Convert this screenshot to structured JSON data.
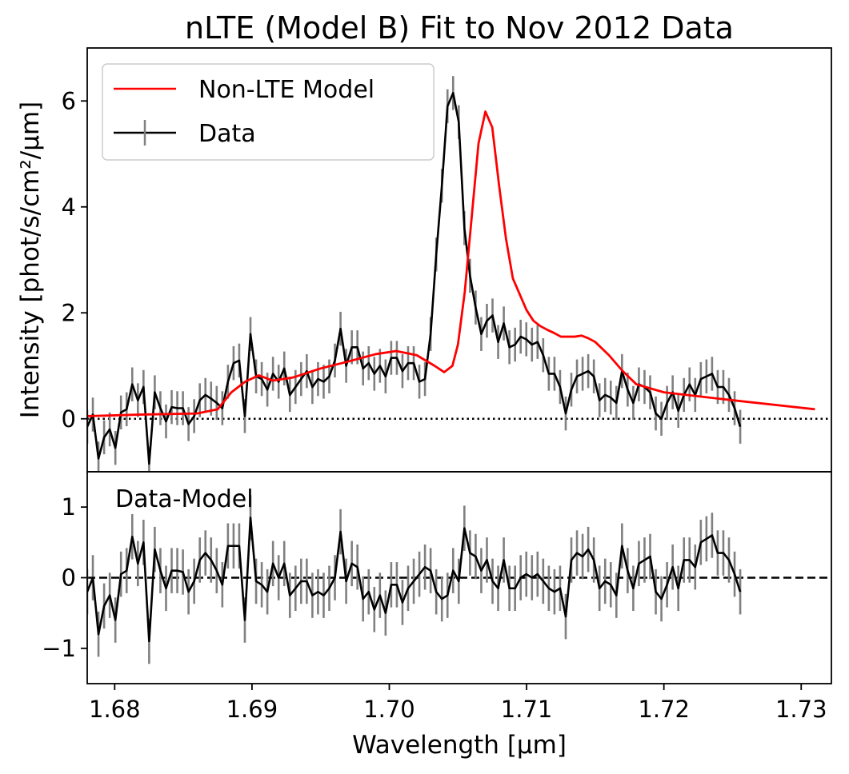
{
  "chart_data": [
    {
      "type": "line",
      "panel": "top",
      "title": "nLTE (Model B) Fit to Nov 2012 Data",
      "ylabel": "Intensity [phot/s/cm²/μm]",
      "xlim": [
        1.678,
        1.7322
      ],
      "ylim": [
        -1.0,
        7.0
      ],
      "yticks": [
        0,
        2,
        4,
        6
      ],
      "ytick_labels": [
        "0",
        "2",
        "4",
        "6"
      ],
      "reference_line": {
        "y": 0,
        "style": "dotted"
      },
      "legend": {
        "placement": "top-left",
        "entries": [
          "Non-LTE Model",
          "Data"
        ]
      },
      "colors": {
        "model": "#ff0000",
        "data": "#000000",
        "errorbar": "#808080"
      },
      "series": [
        {
          "name": "Data",
          "x_start": 1.678,
          "x_step": 0.00041,
          "errorbar": 0.32,
          "values": [
            -0.15,
            0.08,
            -0.75,
            -0.35,
            -0.2,
            -0.55,
            0.12,
            0.18,
            0.65,
            0.35,
            0.6,
            -0.85,
            0.5,
            0.2,
            -0.05,
            0.22,
            0.2,
            0.2,
            -0.1,
            0.05,
            0.35,
            0.45,
            0.38,
            0.3,
            0.2,
            0.7,
            1.05,
            1.1,
            0.05,
            1.6,
            0.8,
            0.75,
            0.55,
            0.85,
            0.7,
            0.95,
            0.45,
            0.6,
            0.75,
            0.9,
            0.6,
            0.75,
            0.7,
            0.8,
            1.1,
            1.7,
            1.0,
            1.35,
            1.35,
            0.95,
            1.05,
            0.85,
            1.0,
            0.8,
            1.15,
            1.15,
            0.9,
            1.05,
            1.05,
            0.7,
            0.75,
            1.6,
            3.1,
            4.4,
            5.9,
            6.15,
            5.6,
            3.6,
            2.7,
            2.1,
            1.6,
            1.85,
            1.95,
            1.45,
            1.8,
            1.35,
            1.4,
            1.55,
            1.5,
            1.4,
            1.45,
            1.2,
            0.85,
            0.85,
            0.6,
            0.1,
            0.55,
            0.8,
            0.85,
            0.9,
            0.8,
            0.35,
            0.45,
            0.4,
            0.3,
            0.9,
            0.55,
            0.3,
            0.65,
            0.6,
            0.5,
            0.1,
            0.0,
            0.3,
            0.5,
            0.15,
            0.45,
            0.65,
            0.45,
            0.75,
            0.8,
            0.85,
            0.6,
            0.6,
            0.45,
            0.2,
            -0.15
          ]
        },
        {
          "name": "Non-LTE Model",
          "x": [
            1.678,
            1.682,
            1.686,
            1.6875,
            1.6885,
            1.6895,
            1.6905,
            1.6915,
            1.693,
            1.695,
            1.697,
            1.699,
            1.7005,
            1.702,
            1.7033,
            1.704,
            1.7046,
            1.705,
            1.7055,
            1.706,
            1.7065,
            1.707,
            1.7075,
            1.708,
            1.7085,
            1.709,
            1.7095,
            1.71,
            1.7105,
            1.711,
            1.7115,
            1.712,
            1.7125,
            1.7135,
            1.714,
            1.7145,
            1.715,
            1.716,
            1.717,
            1.718,
            1.72,
            1.725,
            1.731
          ],
          "y": [
            0.05,
            0.08,
            0.1,
            0.18,
            0.5,
            0.7,
            0.82,
            0.72,
            0.78,
            0.95,
            1.08,
            1.22,
            1.28,
            1.2,
            1.0,
            0.88,
            1.0,
            1.4,
            2.4,
            3.8,
            5.2,
            5.8,
            5.5,
            4.4,
            3.4,
            2.65,
            2.35,
            2.05,
            1.85,
            1.75,
            1.68,
            1.62,
            1.55,
            1.55,
            1.57,
            1.52,
            1.45,
            1.2,
            0.9,
            0.65,
            0.5,
            0.35,
            0.18
          ]
        }
      ]
    },
    {
      "type": "line",
      "panel": "bottom",
      "annotation": "Data-Model",
      "xlabel": "Wavelength [μm]",
      "xlim": [
        1.678,
        1.7322
      ],
      "ylim": [
        -1.5,
        1.5
      ],
      "xticks": [
        1.68,
        1.69,
        1.7,
        1.71,
        1.72,
        1.73
      ],
      "xtick_labels": [
        "1.68",
        "1.69",
        "1.70",
        "1.71",
        "1.72",
        "1.73"
      ],
      "yticks": [
        -1,
        0,
        1
      ],
      "ytick_labels": [
        "−1",
        "0",
        "1"
      ],
      "reference_line": {
        "y": 0,
        "style": "dashed"
      },
      "series": [
        {
          "x_start": 1.678,
          "x_step": 0.00041,
          "errorbar": 0.32,
          "values": [
            -0.2,
            0.0,
            -0.8,
            -0.4,
            -0.25,
            -0.6,
            0.05,
            0.1,
            0.58,
            0.2,
            0.5,
            -0.9,
            0.4,
            0.1,
            -0.15,
            0.1,
            0.1,
            0.08,
            -0.2,
            -0.05,
            0.25,
            0.35,
            0.25,
            0.1,
            -0.1,
            0.45,
            0.45,
            0.45,
            -0.6,
            0.85,
            -0.05,
            -0.1,
            -0.2,
            0.2,
            0.0,
            0.2,
            -0.25,
            -0.15,
            -0.05,
            -0.05,
            -0.25,
            -0.2,
            -0.25,
            -0.15,
            0.0,
            0.65,
            -0.05,
            0.2,
            0.15,
            -0.3,
            -0.2,
            -0.45,
            -0.25,
            -0.5,
            -0.1,
            -0.1,
            -0.35,
            -0.15,
            -0.05,
            0.05,
            0.15,
            0.1,
            -0.2,
            -0.3,
            -0.25,
            0.1,
            -0.05,
            0.7,
            0.35,
            0.3,
            0.1,
            0.25,
            -0.05,
            -0.15,
            0.25,
            -0.15,
            -0.15,
            0.0,
            0.05,
            0.0,
            0.05,
            -0.05,
            -0.15,
            -0.2,
            -0.15,
            -0.55,
            0.25,
            0.35,
            0.3,
            0.4,
            0.25,
            -0.15,
            -0.05,
            -0.1,
            -0.25,
            0.45,
            0.1,
            -0.15,
            0.2,
            0.25,
            0.3,
            -0.2,
            -0.3,
            -0.1,
            0.15,
            -0.15,
            0.25,
            0.25,
            0.15,
            0.5,
            0.55,
            0.6,
            0.35,
            0.35,
            0.25,
            0.05,
            -0.2
          ]
        }
      ]
    }
  ]
}
